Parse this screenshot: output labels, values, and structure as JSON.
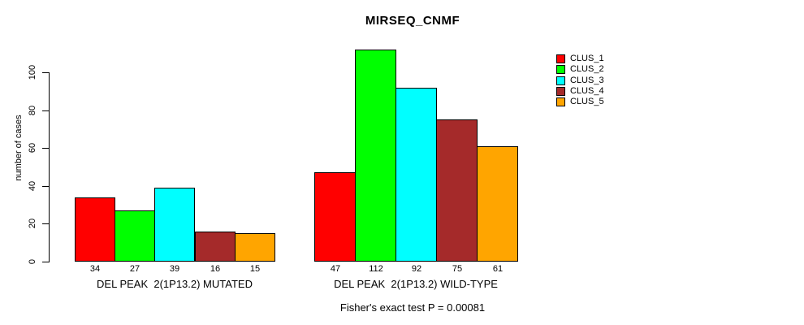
{
  "chart_data": {
    "type": "bar",
    "title": "MIRSEQ_CNMF",
    "ylabel": "number of cases",
    "xlabel": "",
    "ylim": [
      0,
      112
    ],
    "yticks": [
      0,
      20,
      40,
      60,
      80,
      100
    ],
    "grid": false,
    "legend_position": "right",
    "bar_border_color": "#000000",
    "categories": [
      "DEL PEAK  2(1P13.2) MUTATED",
      "DEL PEAK  2(1P13.2) WILD-TYPE"
    ],
    "series": [
      {
        "name": "CLUS_1",
        "color": "#FF0000",
        "values": [
          34,
          47
        ]
      },
      {
        "name": "CLUS_2",
        "color": "#00FF00",
        "values": [
          27,
          112
        ]
      },
      {
        "name": "CLUS_3",
        "color": "#00FFFF",
        "values": [
          39,
          92
        ]
      },
      {
        "name": "CLUS_4",
        "color": "#A52A2A",
        "values": [
          16,
          75
        ]
      },
      {
        "name": "CLUS_5",
        "color": "#FFA500",
        "values": [
          15,
          61
        ]
      }
    ],
    "bar_value_labels_shown": true,
    "annotation": "Fisher's exact test P = 0.00081"
  }
}
